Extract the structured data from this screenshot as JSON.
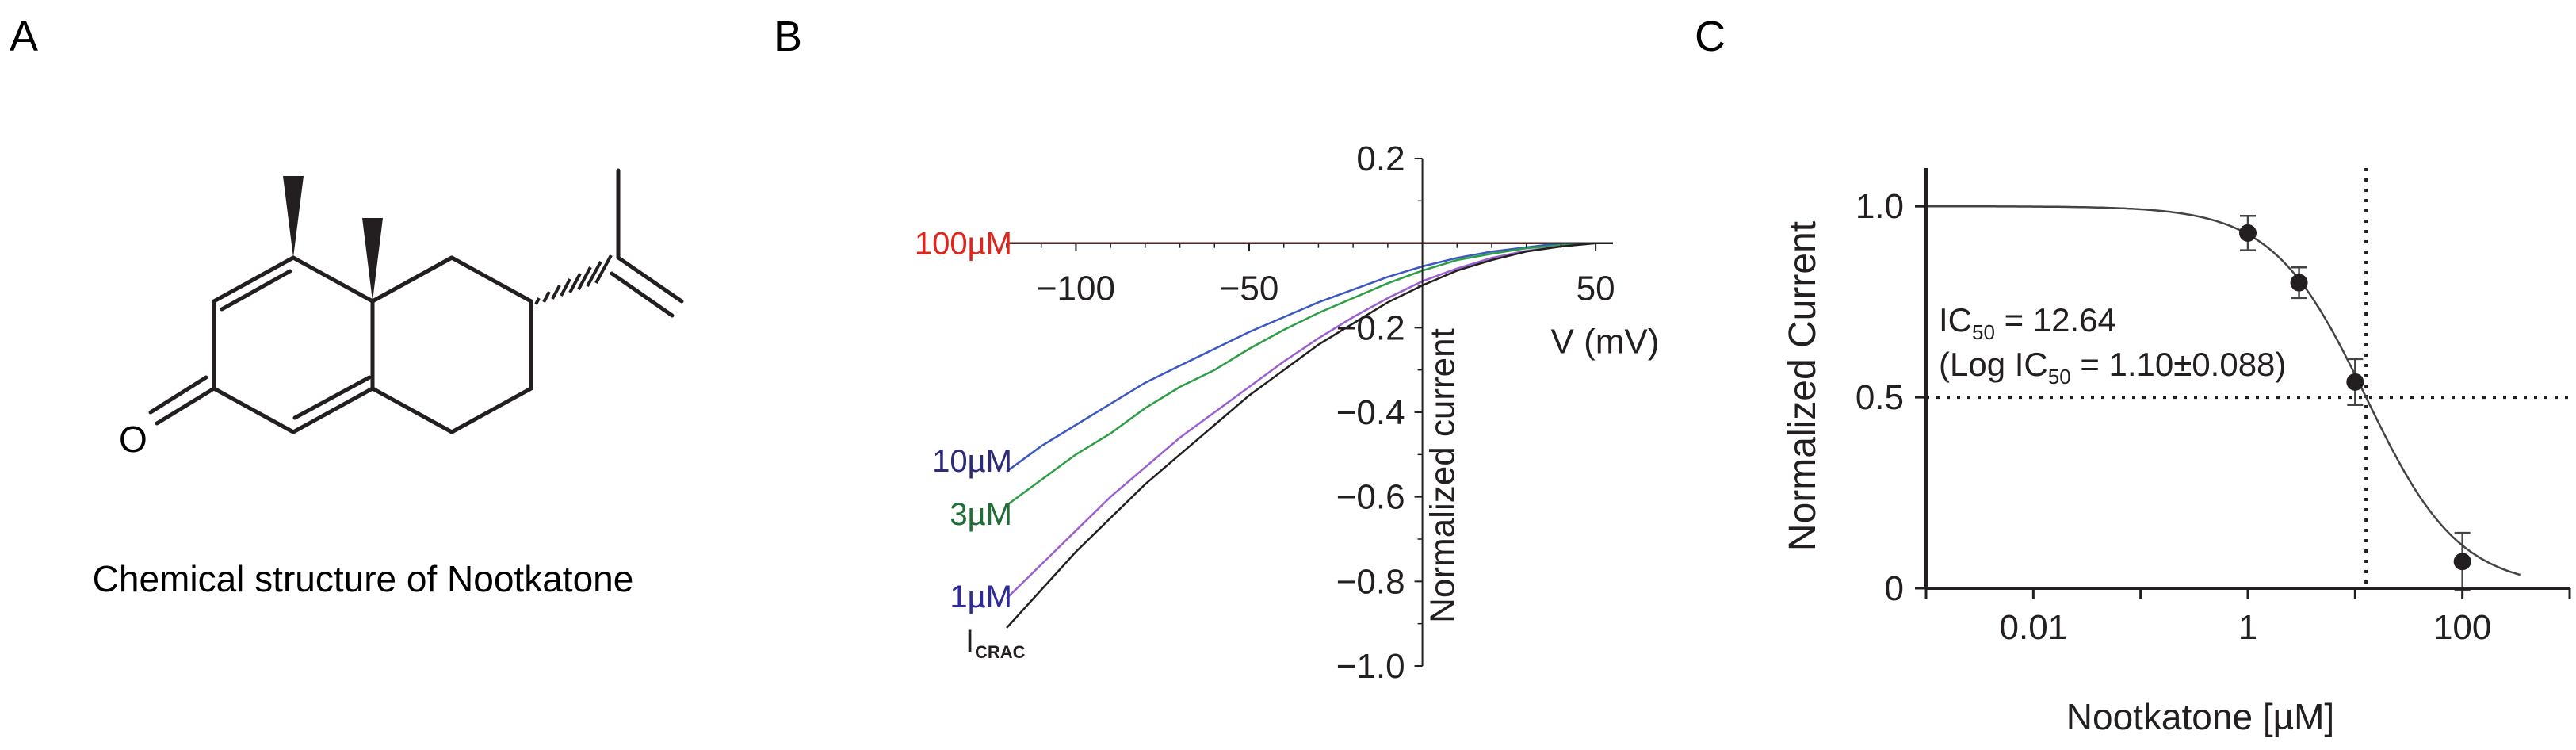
{
  "panels": {
    "a": {
      "letter": "A",
      "caption": "Chemical structure of Nootkatone",
      "oxygen_label": "O"
    },
    "b": {
      "letter": "B"
    },
    "c": {
      "letter": "C"
    }
  },
  "colors": {
    "trace_100uM": "#e2231a",
    "trace_10uM": "#3b57c2",
    "trace_3uM": "#2e9e46",
    "trace_1uM": "#9b5fd0",
    "trace_icrac": "#231f20",
    "label_100uM": "#e2231a",
    "label_10uM": "#2e2a7a",
    "label_3uM": "#1f6e35",
    "label_1uM": "#2e2a9a",
    "axis": "#231f20"
  },
  "chart_data": [
    {
      "id": "B",
      "type": "line",
      "title": "",
      "xlabel": "V (mV)",
      "ylabel": "Normalized current",
      "xlim": [
        -120,
        55
      ],
      "ylim": [
        -1.0,
        0.2
      ],
      "x_ticks": [
        -100,
        -50,
        50
      ],
      "x_tick_labels": [
        "−100",
        "−50",
        "50"
      ],
      "y_ticks": [
        0.2,
        -0.2,
        -0.4,
        -0.6,
        -0.8,
        -1.0
      ],
      "y_tick_labels": [
        "0.2",
        "−0.2",
        "−0.4",
        "−0.6",
        "−0.8",
        "−1.0"
      ],
      "x": [
        -120,
        -110,
        -100,
        -90,
        -80,
        -70,
        -60,
        -50,
        -40,
        -30,
        -20,
        -10,
        0,
        10,
        20,
        30,
        40,
        50,
        55
      ],
      "series": [
        {
          "name": "100µM",
          "label": "100µM",
          "color_key": "trace_100uM",
          "values": [
            0.0,
            0.0,
            0.0,
            0.0,
            0.0,
            0.0,
            0.0,
            0.0,
            0.0,
            0.0,
            0.0,
            0.0,
            0.0,
            0.0,
            0.0,
            0.0,
            0.0,
            0.0,
            0.0
          ]
        },
        {
          "name": "10µM",
          "label": "10µM",
          "color_key": "trace_10uM",
          "values": [
            -0.54,
            -0.48,
            -0.43,
            -0.38,
            -0.33,
            -0.29,
            -0.25,
            -0.21,
            -0.175,
            -0.14,
            -0.11,
            -0.08,
            -0.055,
            -0.035,
            -0.02,
            -0.01,
            0.0,
            0.0,
            0.0
          ]
        },
        {
          "name": "3µM",
          "label": "3µM",
          "color_key": "trace_3uM",
          "values": [
            -0.62,
            -0.56,
            -0.5,
            -0.45,
            -0.39,
            -0.34,
            -0.3,
            -0.25,
            -0.205,
            -0.165,
            -0.13,
            -0.095,
            -0.065,
            -0.04,
            -0.025,
            -0.012,
            -0.005,
            0.0,
            0.0
          ]
        },
        {
          "name": "1µM",
          "label": "1µM",
          "color_key": "trace_1uM",
          "values": [
            -0.84,
            -0.76,
            -0.68,
            -0.6,
            -0.53,
            -0.46,
            -0.4,
            -0.34,
            -0.28,
            -0.225,
            -0.175,
            -0.13,
            -0.09,
            -0.06,
            -0.035,
            -0.018,
            -0.008,
            0.0,
            0.0
          ]
        },
        {
          "name": "ICRAC",
          "label": "I",
          "label_sub": "CRAC",
          "color_key": "trace_icrac",
          "values": [
            -0.91,
            -0.82,
            -0.73,
            -0.65,
            -0.57,
            -0.5,
            -0.43,
            -0.36,
            -0.3,
            -0.24,
            -0.19,
            -0.14,
            -0.1,
            -0.065,
            -0.04,
            -0.02,
            -0.008,
            0.0,
            0.0
          ]
        }
      ]
    },
    {
      "id": "C",
      "type": "scatter",
      "title": "",
      "xlabel": "Nootkatone [µM]",
      "ylabel": "Normalized Current",
      "xscale": "log",
      "xlim": [
        0.001,
        1000
      ],
      "ylim": [
        0,
        1.1
      ],
      "x_ticks": [
        0.01,
        1,
        100
      ],
      "x_tick_labels": [
        "0.01",
        "1",
        "100"
      ],
      "y_ticks": [
        0,
        0.5,
        1.0
      ],
      "y_tick_labels": [
        "0",
        "0.5",
        "1.0"
      ],
      "x": [
        1,
        3,
        10,
        100
      ],
      "series": [
        {
          "name": "Nootkatone",
          "values": [
            0.93,
            0.8,
            0.54,
            0.07
          ],
          "error": [
            0.045,
            0.04,
            0.06,
            0.075
          ]
        }
      ],
      "fit": {
        "type": "hill",
        "top": 1.0,
        "bottom": 0.0,
        "ic50": 12.64,
        "hill": 1.0
      },
      "reference_lines": {
        "y": 0.5,
        "x": 12.64
      },
      "annotation": {
        "line1_prefix": "IC",
        "line1_sub": "50",
        "line1_suffix": " = 12.64",
        "line2_prefix": "(Log IC",
        "line2_sub": "50",
        "line2_suffix": " = 1.10±0.088)"
      }
    }
  ]
}
